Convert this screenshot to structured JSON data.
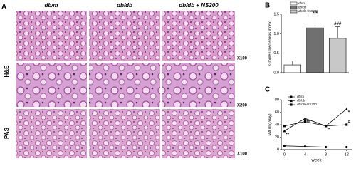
{
  "figure": {
    "panel_a": {
      "label": "A",
      "columns": [
        "db/m",
        "db/db",
        "db/db + NS200"
      ],
      "rows": [
        "H&E",
        "PAS"
      ],
      "magnifications": [
        "X100",
        "X200",
        "X100"
      ]
    }
  },
  "chart_data": [
    {
      "type": "bar",
      "label": "B",
      "ylabel": "Glomerulosclerosis index",
      "ylim": [
        0,
        1.5
      ],
      "yticks": [
        {
          "value": 0,
          "label": "0.0"
        },
        0.5,
        {
          "value": 1,
          "label": "1.0"
        },
        1.5
      ],
      "series": [
        {
          "name": "db/m",
          "color": "#ffffff",
          "values": [
            0.2
          ],
          "errors": [
            0.1
          ]
        },
        {
          "name": "db/db",
          "color": "#707070",
          "values": [
            1.15
          ],
          "errors": [
            0.3
          ],
          "annotation": "***"
        },
        {
          "name": "db/db+NS200",
          "color": "#c8c8c8",
          "values": [
            0.88
          ],
          "errors": [
            0.3
          ],
          "annotation": "###"
        }
      ]
    },
    {
      "type": "line",
      "label": "C",
      "xlabel": "week",
      "ylabel": "MA (mg/day)",
      "x": [
        0,
        4,
        8,
        12
      ],
      "xlim": [
        -0.6,
        13
      ],
      "xticks": [
        0,
        4,
        8,
        12
      ],
      "ylim": [
        0,
        80
      ],
      "yticks": [
        0,
        20,
        40,
        60,
        80
      ],
      "series": [
        {
          "name": "db/m",
          "color": "#000000",
          "values": [
            6,
            5,
            4,
            4
          ]
        },
        {
          "name": "db/db",
          "color": "#000000",
          "values": [
            30,
            50,
            38,
            65
          ],
          "point_labels": [
            "**",
            "**",
            "**",
            "*"
          ]
        },
        {
          "name": "db/db+NS200",
          "color": "#000000",
          "values": [
            38,
            45,
            38,
            40
          ],
          "point_labels": [
            null,
            null,
            null,
            "#"
          ]
        }
      ]
    }
  ]
}
